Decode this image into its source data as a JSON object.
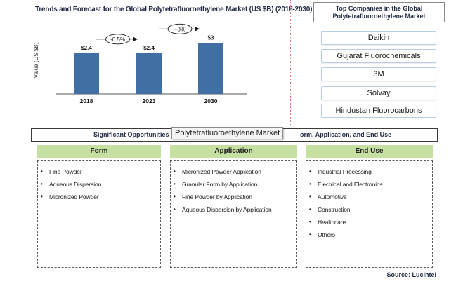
{
  "chart_data": {
    "type": "bar",
    "title": "Trends and Forecast for the Global Polytetrafluoroethylene Market (US $B) (2018-2030)",
    "ylabel": "Value (US $B)",
    "xlabel": "",
    "categories": [
      "2018",
      "2023",
      "2030"
    ],
    "values": [
      2.4,
      2.4,
      3.0
    ],
    "data_labels": [
      "$2.4",
      "$2.4",
      "$3"
    ],
    "growth_annotations": [
      "-0.5%",
      "+3%"
    ],
    "ylim": [
      0,
      3.3
    ],
    "bar_color": "#3f6fa3",
    "grid": false
  },
  "top_companies": {
    "title": "Top  Companies in the Global Polytetrafluoroethylene Market",
    "items": [
      "Daikin",
      "Gujarat Fluorochemicals",
      "3M",
      "Solvay",
      "Hindustan Fluorocarbons"
    ]
  },
  "opportunities": {
    "title_start": "Significant Opportunities for",
    "title_end": "orm, Application, and End Use",
    "tooltip": "Polytetrafluoroethylene Market",
    "categories": [
      {
        "name": "Form",
        "items": [
          "Fine Powder",
          "Aqueous Dispersion",
          "Micronized Powder"
        ]
      },
      {
        "name": "Application",
        "items": [
          "Micronized Powder Application",
          "Granular Form by Application",
          "Fine Powder by Application",
          "Aqueous Dispersion by Application"
        ]
      },
      {
        "name": "End Use",
        "items": [
          "Industrial Processing",
          "Electrical and Electronics",
          "Automotive",
          "Construction",
          "Healthcare",
          "Others"
        ]
      }
    ]
  },
  "source": "Source: Lucintel",
  "colors": {
    "header_green": "#c6e0a2",
    "bar_blue": "#3f6fa3",
    "divider": "#e07a7a"
  }
}
